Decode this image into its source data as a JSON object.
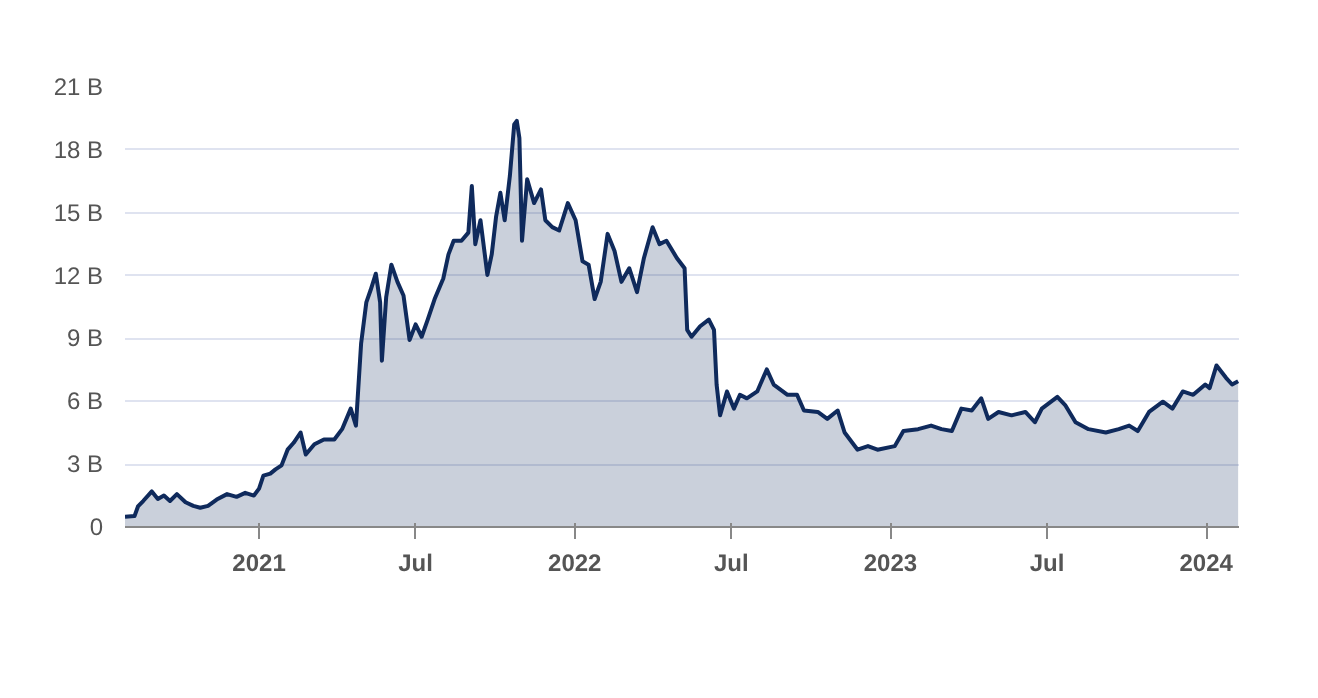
{
  "chart_data": {
    "type": "area",
    "grid": "y",
    "line_style": "solid",
    "xlim": [
      "2020-07-30",
      "2024-02-08"
    ],
    "ylim": [
      0,
      21
    ],
    "xticks": [
      {
        "value": "2021-01-01",
        "label": "2021"
      },
      {
        "value": "2021-07-01",
        "label": "Jul"
      },
      {
        "value": "2022-01-01",
        "label": "2022"
      },
      {
        "value": "2022-07-01",
        "label": "Jul"
      },
      {
        "value": "2023-01-01",
        "label": "2023"
      },
      {
        "value": "2023-07-01",
        "label": "Jul"
      },
      {
        "value": "2024-01-01",
        "label": "2024"
      }
    ],
    "yticks": [
      0,
      {
        "value": 3,
        "label": "3 B"
      },
      {
        "value": 6,
        "label": "6 B"
      },
      {
        "value": 9,
        "label": "9 B"
      },
      {
        "value": 12,
        "label": "12 B"
      },
      {
        "value": 15,
        "label": "15 B"
      },
      {
        "value": 18,
        "label": "18 B"
      },
      {
        "value": 21,
        "label": "21 B"
      }
    ],
    "x": [
      "2020-07-30",
      "2020-08-10",
      "2020-08-14",
      "2020-08-20",
      "2020-08-30",
      "2020-09-06",
      "2020-09-13",
      "2020-09-20",
      "2020-09-28",
      "2020-10-08",
      "2020-10-17",
      "2020-10-25",
      "2020-11-03",
      "2020-11-13",
      "2020-11-25",
      "2020-12-06",
      "2020-12-16",
      "2020-12-26",
      "2021-01-01",
      "2021-01-06",
      "2021-01-14",
      "2021-01-20",
      "2021-01-27",
      "2021-02-03",
      "2021-02-10",
      "2021-02-18",
      "2021-02-24",
      "2021-03-06",
      "2021-03-17",
      "2021-03-29",
      "2021-04-07",
      "2021-04-17",
      "2021-04-23",
      "2021-04-29",
      "2021-05-05",
      "2021-05-10",
      "2021-05-16",
      "2021-05-21",
      "2021-05-23",
      "2021-05-28",
      "2021-06-03",
      "2021-06-10",
      "2021-06-17",
      "2021-06-24",
      "2021-07-01",
      "2021-07-08",
      "2021-07-15",
      "2021-07-23",
      "2021-08-02",
      "2021-08-08",
      "2021-08-14",
      "2021-08-23",
      "2021-08-31",
      "2021-09-04",
      "2021-09-08",
      "2021-09-14",
      "2021-09-22",
      "2021-09-27",
      "2021-10-02",
      "2021-10-07",
      "2021-10-12",
      "2021-10-18",
      "2021-10-23",
      "2021-10-26",
      "2021-10-29",
      "2021-11-01",
      "2021-11-07",
      "2021-11-15",
      "2021-11-23",
      "2021-11-28",
      "2021-12-06",
      "2021-12-14",
      "2021-12-24",
      "2022-01-02",
      "2022-01-10",
      "2022-01-17",
      "2022-01-24",
      "2022-01-31",
      "2022-02-08",
      "2022-02-16",
      "2022-02-24",
      "2022-03-05",
      "2022-03-14",
      "2022-03-22",
      "2022-04-01",
      "2022-04-09",
      "2022-04-17",
      "2022-04-29",
      "2022-05-08",
      "2022-05-11",
      "2022-05-16",
      "2022-05-26",
      "2022-06-05",
      "2022-06-11",
      "2022-06-14",
      "2022-06-18",
      "2022-06-26",
      "2022-07-04",
      "2022-07-11",
      "2022-07-19",
      "2022-07-31",
      "2022-08-11",
      "2022-08-19",
      "2022-09-04",
      "2022-09-15",
      "2022-09-23",
      "2022-10-09",
      "2022-10-20",
      "2022-11-01",
      "2022-11-09",
      "2022-11-24",
      "2022-12-06",
      "2022-12-17",
      "2023-01-06",
      "2023-01-16",
      "2023-02-02",
      "2023-02-17",
      "2023-03-01",
      "2023-03-13",
      "2023-03-24",
      "2023-04-05",
      "2023-04-16",
      "2023-04-24",
      "2023-05-06",
      "2023-05-21",
      "2023-06-06",
      "2023-06-17",
      "2023-06-25",
      "2023-07-13",
      "2023-07-22",
      "2023-08-03",
      "2023-08-18",
      "2023-09-07",
      "2023-09-22",
      "2023-10-04",
      "2023-10-14",
      "2023-10-27",
      "2023-11-12",
      "2023-11-23",
      "2023-12-05",
      "2023-12-17",
      "2023-12-31",
      "2024-01-05",
      "2024-01-13",
      "2024-01-24",
      "2024-01-31",
      "2024-02-07"
    ],
    "series": [
      {
        "color": "#0f2a5c",
        "values": [
          0.49,
          0.52,
          0.98,
          1.24,
          1.7,
          1.34,
          1.5,
          1.24,
          1.57,
          1.18,
          1.01,
          0.92,
          1.01,
          1.31,
          1.57,
          1.44,
          1.63,
          1.5,
          1.83,
          2.45,
          2.55,
          2.75,
          2.94,
          3.69,
          4.02,
          4.51,
          3.46,
          3.95,
          4.18,
          4.18,
          4.67,
          5.65,
          4.84,
          8.76,
          10.72,
          11.31,
          12.09,
          10.72,
          7.94,
          10.98,
          12.52,
          11.7,
          11.05,
          8.92,
          9.67,
          9.08,
          9.9,
          10.88,
          11.86,
          13.01,
          13.66,
          13.66,
          14.05,
          16.27,
          13.5,
          14.64,
          12.03,
          13.01,
          14.8,
          15.95,
          14.64,
          16.76,
          19.21,
          19.38,
          18.56,
          13.66,
          16.6,
          15.46,
          16.11,
          14.64,
          14.31,
          14.15,
          15.46,
          14.64,
          12.68,
          12.52,
          10.88,
          11.7,
          13.99,
          13.17,
          11.7,
          12.35,
          11.21,
          12.84,
          14.31,
          13.5,
          13.66,
          12.84,
          12.35,
          9.41,
          9.08,
          9.58,
          9.9,
          9.41,
          6.8,
          5.33,
          6.47,
          5.65,
          6.31,
          6.14,
          6.47,
          7.52,
          6.8,
          6.31,
          6.31,
          5.56,
          5.49,
          5.16,
          5.56,
          4.51,
          3.69,
          3.86,
          3.69,
          3.86,
          4.58,
          4.67,
          4.84,
          4.67,
          4.58,
          5.65,
          5.56,
          6.14,
          5.16,
          5.49,
          5.33,
          5.49,
          5.0,
          5.65,
          6.21,
          5.82,
          5.0,
          4.67,
          4.51,
          4.67,
          4.84,
          4.58,
          5.49,
          5.98,
          5.65,
          6.47,
          6.31,
          6.8,
          6.63,
          7.71,
          7.12,
          6.8,
          6.96
        ]
      }
    ]
  }
}
